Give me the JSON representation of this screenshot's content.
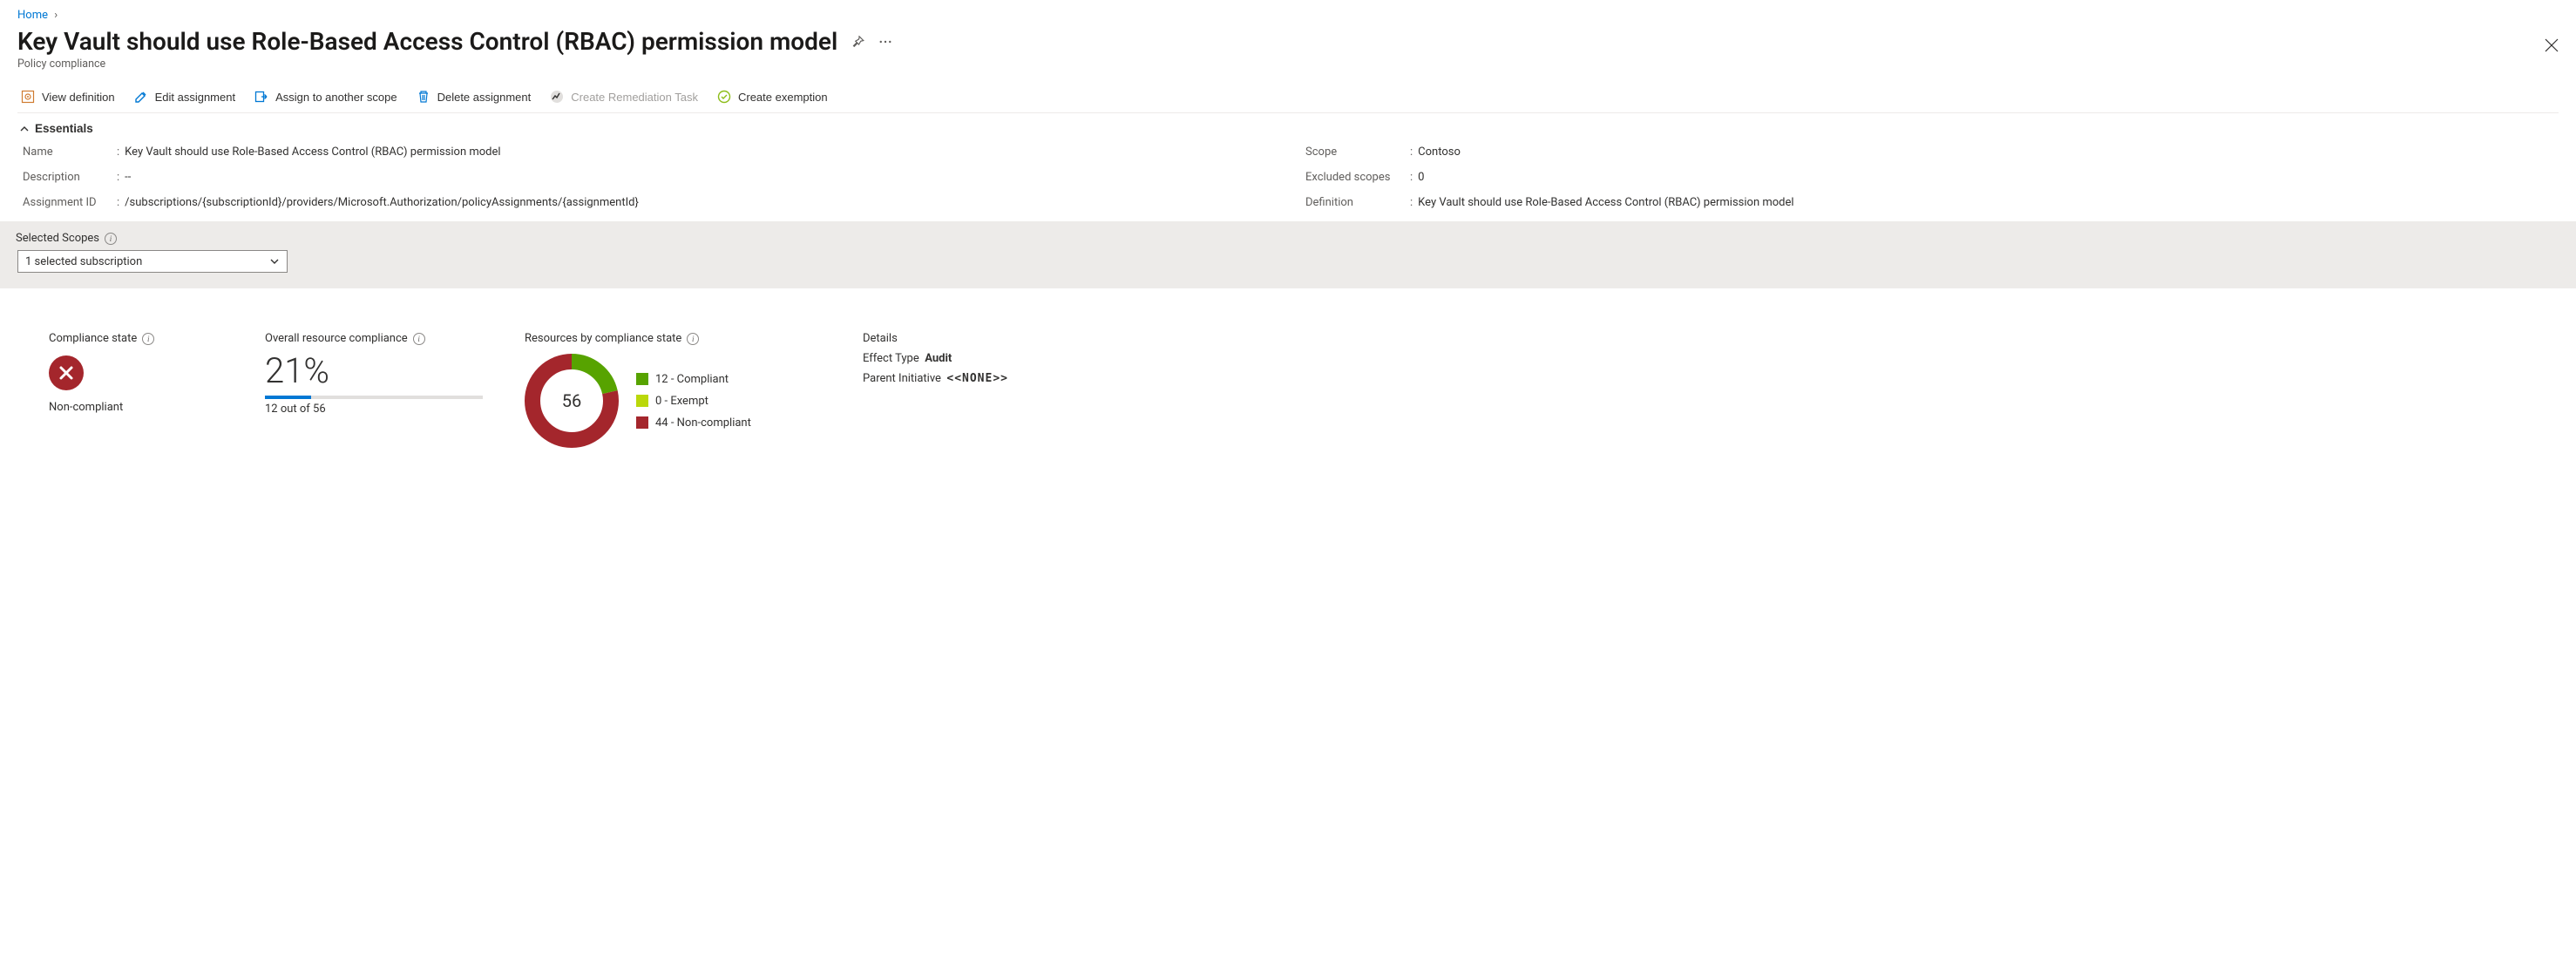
{
  "breadcrumb": {
    "home": "Home"
  },
  "header": {
    "title": "Key Vault should use Role-Based Access Control (RBAC) permission model",
    "subtitle": "Policy compliance"
  },
  "toolbar": {
    "view_definition": "View definition",
    "edit_assignment": "Edit assignment",
    "assign_scope": "Assign to another scope",
    "delete_assignment": "Delete assignment",
    "create_remediation": "Create Remediation Task",
    "create_exemption": "Create exemption"
  },
  "essentials": {
    "header": "Essentials",
    "left": {
      "name_label": "Name",
      "name_value": "Key Vault should use Role-Based Access Control (RBAC) permission model",
      "description_label": "Description",
      "description_value": "--",
      "assignment_id_label": "Assignment ID",
      "assignment_id_value": "/subscriptions/{subscriptionId}/providers/Microsoft.Authorization/policyAssignments/{assignmentId}"
    },
    "right": {
      "scope_label": "Scope",
      "scope_value": "Contoso",
      "excluded_label": "Excluded scopes",
      "excluded_value": "0",
      "definition_label": "Definition",
      "definition_value": "Key Vault should use Role-Based Access Control (RBAC) permission model"
    }
  },
  "scopes": {
    "label": "Selected Scopes",
    "selected": "1 selected subscription"
  },
  "compliance_state": {
    "title": "Compliance state",
    "status": "Non-compliant",
    "badge_color": "#a4262c"
  },
  "overall": {
    "title": "Overall resource compliance",
    "percent_label": "21%",
    "percent_value": 21,
    "sub": "12 out of 56",
    "bar_bg": "#e1dfdd",
    "bar_fill": "#0078d4"
  },
  "donut": {
    "title": "Resources by compliance state",
    "total_label": "56",
    "total": 56,
    "slices": [
      {
        "label": "12 - Compliant",
        "value": 12,
        "color": "#57a300",
        "swatch": "#57a300"
      },
      {
        "label": "0 - Exempt",
        "value": 0,
        "color": "#bad80a",
        "swatch": "#bad80a"
      },
      {
        "label": "44 - Non-compliant",
        "value": 44,
        "color": "#a4262c",
        "swatch": "#a4262c"
      }
    ],
    "stroke_width": 18,
    "size": 108
  },
  "details": {
    "title": "Details",
    "effect_label": "Effect Type",
    "effect_value": "Audit",
    "parent_label": "Parent Initiative",
    "parent_value": "<<NONE>>"
  },
  "icon_colors": {
    "blue": "#0078d4",
    "grey": "#605e5c",
    "green": "#8cbd18"
  }
}
